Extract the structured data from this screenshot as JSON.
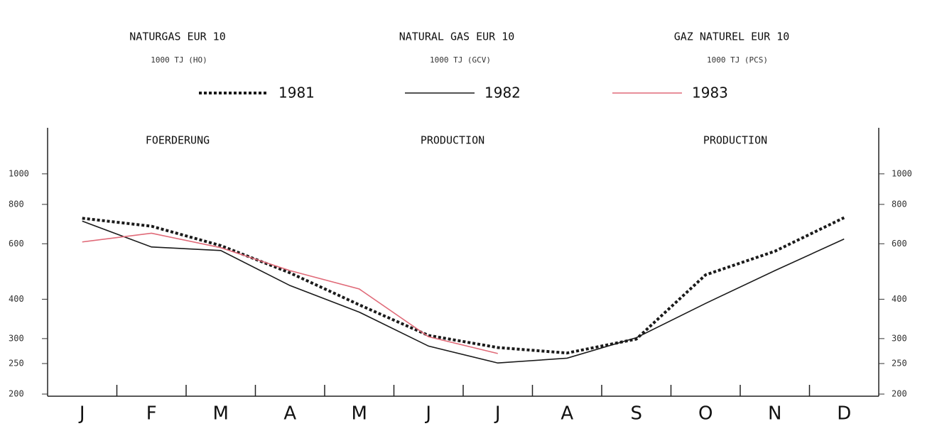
{
  "chart_data": {
    "type": "line",
    "titles": [
      "NATURGAS  EUR 10",
      "NATURAL GAS  EUR 10",
      "GAZ NATUREL  EUR 10"
    ],
    "units": [
      "1000 TJ (HO)",
      "1000 TJ (GCV)",
      "1000 TJ (PCS)"
    ],
    "labels": [
      "FOERDERUNG",
      "PRODUCTION",
      "PRODUCTION"
    ],
    "categories": [
      "J",
      "F",
      "M",
      "A",
      "M",
      "J",
      "J",
      "A",
      "S",
      "O",
      "N",
      "D"
    ],
    "series": [
      {
        "name": "1981",
        "color": "#1a1a1a",
        "style": "dotted",
        "values": [
          723,
          682,
          592,
          485,
          384,
          307,
          281,
          270,
          299,
          478,
          568,
          726
        ]
      },
      {
        "name": "1982",
        "color": "#1a1a1a",
        "style": "solid",
        "values": [
          708,
          586,
          571,
          442,
          364,
          284,
          251,
          260,
          302,
          388,
          493,
          621
        ]
      },
      {
        "name": "1983",
        "color": "#e06a78",
        "style": "solid",
        "values": [
          608,
          648,
          583,
          493,
          431,
          304,
          269,
          null,
          null,
          null,
          null,
          null
        ]
      }
    ],
    "log_y": true,
    "ylim": [
      200,
      1400
    ],
    "yticks": [
      200,
      250,
      300,
      400,
      600,
      800,
      1000
    ]
  }
}
